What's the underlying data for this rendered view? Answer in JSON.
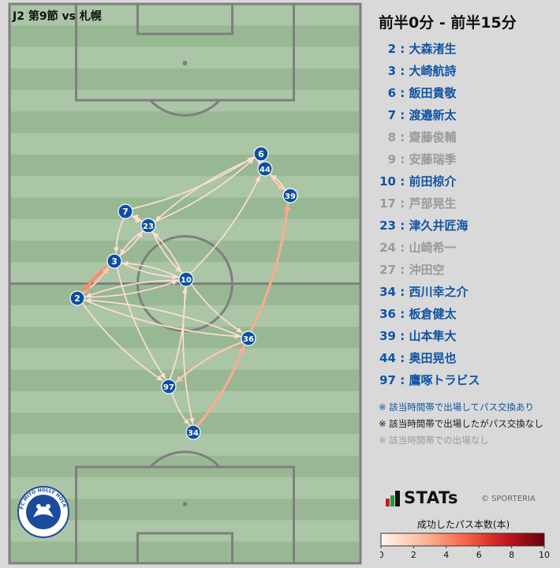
{
  "header": {
    "match": "J2 第9節 vs 札幌",
    "period": "前半0分 - 前半15分"
  },
  "colors": {
    "pitch_light": "#abc5a7",
    "pitch_dark": "#98b893",
    "line": "#7f7f7f",
    "player_node": "#0e4fa0",
    "active_text": "#1155a5",
    "passive_text": "#1a1a1a",
    "absent_text": "#9a9a9a"
  },
  "chart_data": {
    "type": "pass-network",
    "color_scale": {
      "title": "成功したパス本数(本)",
      "min": 0,
      "max": 10,
      "ticks": [
        "0",
        "2",
        "4",
        "6",
        "8",
        "10"
      ]
    },
    "players": [
      {
        "num": "2",
        "name": "大森渚生",
        "status": "active"
      },
      {
        "num": "3",
        "name": "大崎航詩",
        "status": "active"
      },
      {
        "num": "6",
        "name": "飯田貴敬",
        "status": "active"
      },
      {
        "num": "7",
        "name": "渡邉新太",
        "status": "active"
      },
      {
        "num": "8",
        "name": "齋藤俊輔",
        "status": "absent"
      },
      {
        "num": "9",
        "name": "安藤瑞季",
        "status": "absent"
      },
      {
        "num": "10",
        "name": "前田椋介",
        "status": "active"
      },
      {
        "num": "17",
        "name": "芦部晃生",
        "status": "absent"
      },
      {
        "num": "23",
        "name": "津久井匠海",
        "status": "active"
      },
      {
        "num": "24",
        "name": "山崎希一",
        "status": "absent"
      },
      {
        "num": "27",
        "name": "沖田空",
        "status": "absent"
      },
      {
        "num": "34",
        "name": "西川幸之介",
        "status": "active"
      },
      {
        "num": "36",
        "name": "板倉健太",
        "status": "active"
      },
      {
        "num": "39",
        "name": "山本隼大",
        "status": "active"
      },
      {
        "num": "44",
        "name": "奥田晃也",
        "status": "active"
      },
      {
        "num": "97",
        "name": "鷹啄トラビス",
        "status": "active"
      }
    ],
    "passes": [
      {
        "from": "3",
        "to": "2",
        "count": 4
      },
      {
        "from": "2",
        "to": "3",
        "count": 2
      },
      {
        "from": "34",
        "to": "36",
        "count": 3
      },
      {
        "from": "36",
        "to": "39",
        "count": 3
      },
      {
        "from": "36",
        "to": "97",
        "count": 2
      },
      {
        "from": "44",
        "to": "39",
        "count": 2
      },
      {
        "from": "39",
        "to": "44",
        "count": 1
      },
      {
        "from": "6",
        "to": "44",
        "count": 1
      },
      {
        "from": "7",
        "to": "3",
        "count": 1
      },
      {
        "from": "7",
        "to": "23",
        "count": 1
      },
      {
        "from": "7",
        "to": "6",
        "count": 1
      },
      {
        "from": "23",
        "to": "7",
        "count": 1
      },
      {
        "from": "23",
        "to": "6",
        "count": 1
      },
      {
        "from": "23",
        "to": "3",
        "count": 1
      },
      {
        "from": "23",
        "to": "10",
        "count": 1
      },
      {
        "from": "3",
        "to": "23",
        "count": 1
      },
      {
        "from": "3",
        "to": "10",
        "count": 1
      },
      {
        "from": "10",
        "to": "3",
        "count": 1
      },
      {
        "from": "10",
        "to": "2",
        "count": 1
      },
      {
        "from": "10",
        "to": "44",
        "count": 1
      },
      {
        "from": "6",
        "to": "23",
        "count": 1
      },
      {
        "from": "10",
        "to": "23",
        "count": 1
      },
      {
        "from": "2",
        "to": "10",
        "count": 1
      },
      {
        "from": "10",
        "to": "36",
        "count": 1
      },
      {
        "from": "2",
        "to": "36",
        "count": 1
      },
      {
        "from": "36",
        "to": "2",
        "count": 1
      },
      {
        "from": "3",
        "to": "97",
        "count": 1
      },
      {
        "from": "97",
        "to": "34",
        "count": 1
      },
      {
        "from": "2",
        "to": "97",
        "count": 1
      },
      {
        "from": "10",
        "to": "34",
        "count": 1
      },
      {
        "from": "97",
        "to": "10",
        "count": 1
      }
    ]
  },
  "notes": [
    {
      "text": "※ 該当時間帯で出場してパス交換あり",
      "status": "active"
    },
    {
      "text": "※ 該当時間帯で出場したがパス交換なし",
      "status": "passive"
    },
    {
      "text": "※ 該当時間帯での出場なし",
      "status": "absent"
    }
  ],
  "branding": {
    "stats_logo": "STATs",
    "copyright": "© SPORTERIA",
    "club_crest_text": "FC MITO HOLLY HOCK"
  }
}
